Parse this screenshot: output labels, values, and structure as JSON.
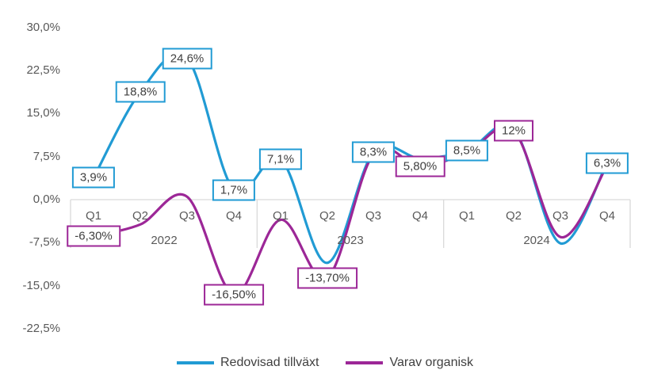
{
  "chart_data": {
    "type": "line",
    "title": "",
    "categories": [
      "Q1",
      "Q2",
      "Q3",
      "Q4",
      "Q1",
      "Q2",
      "Q3",
      "Q4",
      "Q1",
      "Q2",
      "Q3",
      "Q4"
    ],
    "year_groups": [
      {
        "label": "2022",
        "count": 4
      },
      {
        "label": "2023",
        "count": 4
      },
      {
        "label": "2024",
        "count": 4
      }
    ],
    "y_axis": {
      "tick_labels": [
        "30,0%",
        "22,5%",
        "15,0%",
        "7,5%",
        "0,0%",
        "-7,5%",
        "-15,0%",
        "-22,5%"
      ],
      "tick_values": [
        30,
        22.5,
        15,
        7.5,
        0,
        -7.5,
        -15,
        -22.5
      ],
      "min": -26,
      "max": 32
    },
    "grid": "zero-axis-line-only",
    "line_style": "smoothed",
    "legend_position": "bottom",
    "series": [
      {
        "name": "Redovisad tillväxt",
        "color": "#219bd4",
        "values": [
          3.9,
          18.8,
          24.6,
          1.7,
          7.1,
          -11,
          8.3,
          7.2,
          8.5,
          12.3,
          -7.6,
          6.3
        ],
        "point_labels": [
          "3,9%",
          "18,8%",
          "24,6%",
          "1,7%",
          "7,1%",
          null,
          "8,3%",
          null,
          "8,5%",
          null,
          null,
          "6,3%"
        ]
      },
      {
        "name": "Varav organisk",
        "color": "#9c2797",
        "values": [
          -6.3,
          -4.3,
          0.5,
          -16.5,
          -3.5,
          -13.7,
          8,
          5.8,
          8.2,
          12,
          -6.5,
          5.9
        ],
        "point_labels": [
          "-6,30%",
          null,
          null,
          "-16,50%",
          null,
          "-13,70%",
          null,
          "5,80%",
          null,
          "12%",
          null,
          null
        ]
      }
    ]
  },
  "colors": {
    "axis_line": "#d9d9d9",
    "axis_text": "#595959",
    "label_text": "#404040",
    "background": "#ffffff"
  }
}
